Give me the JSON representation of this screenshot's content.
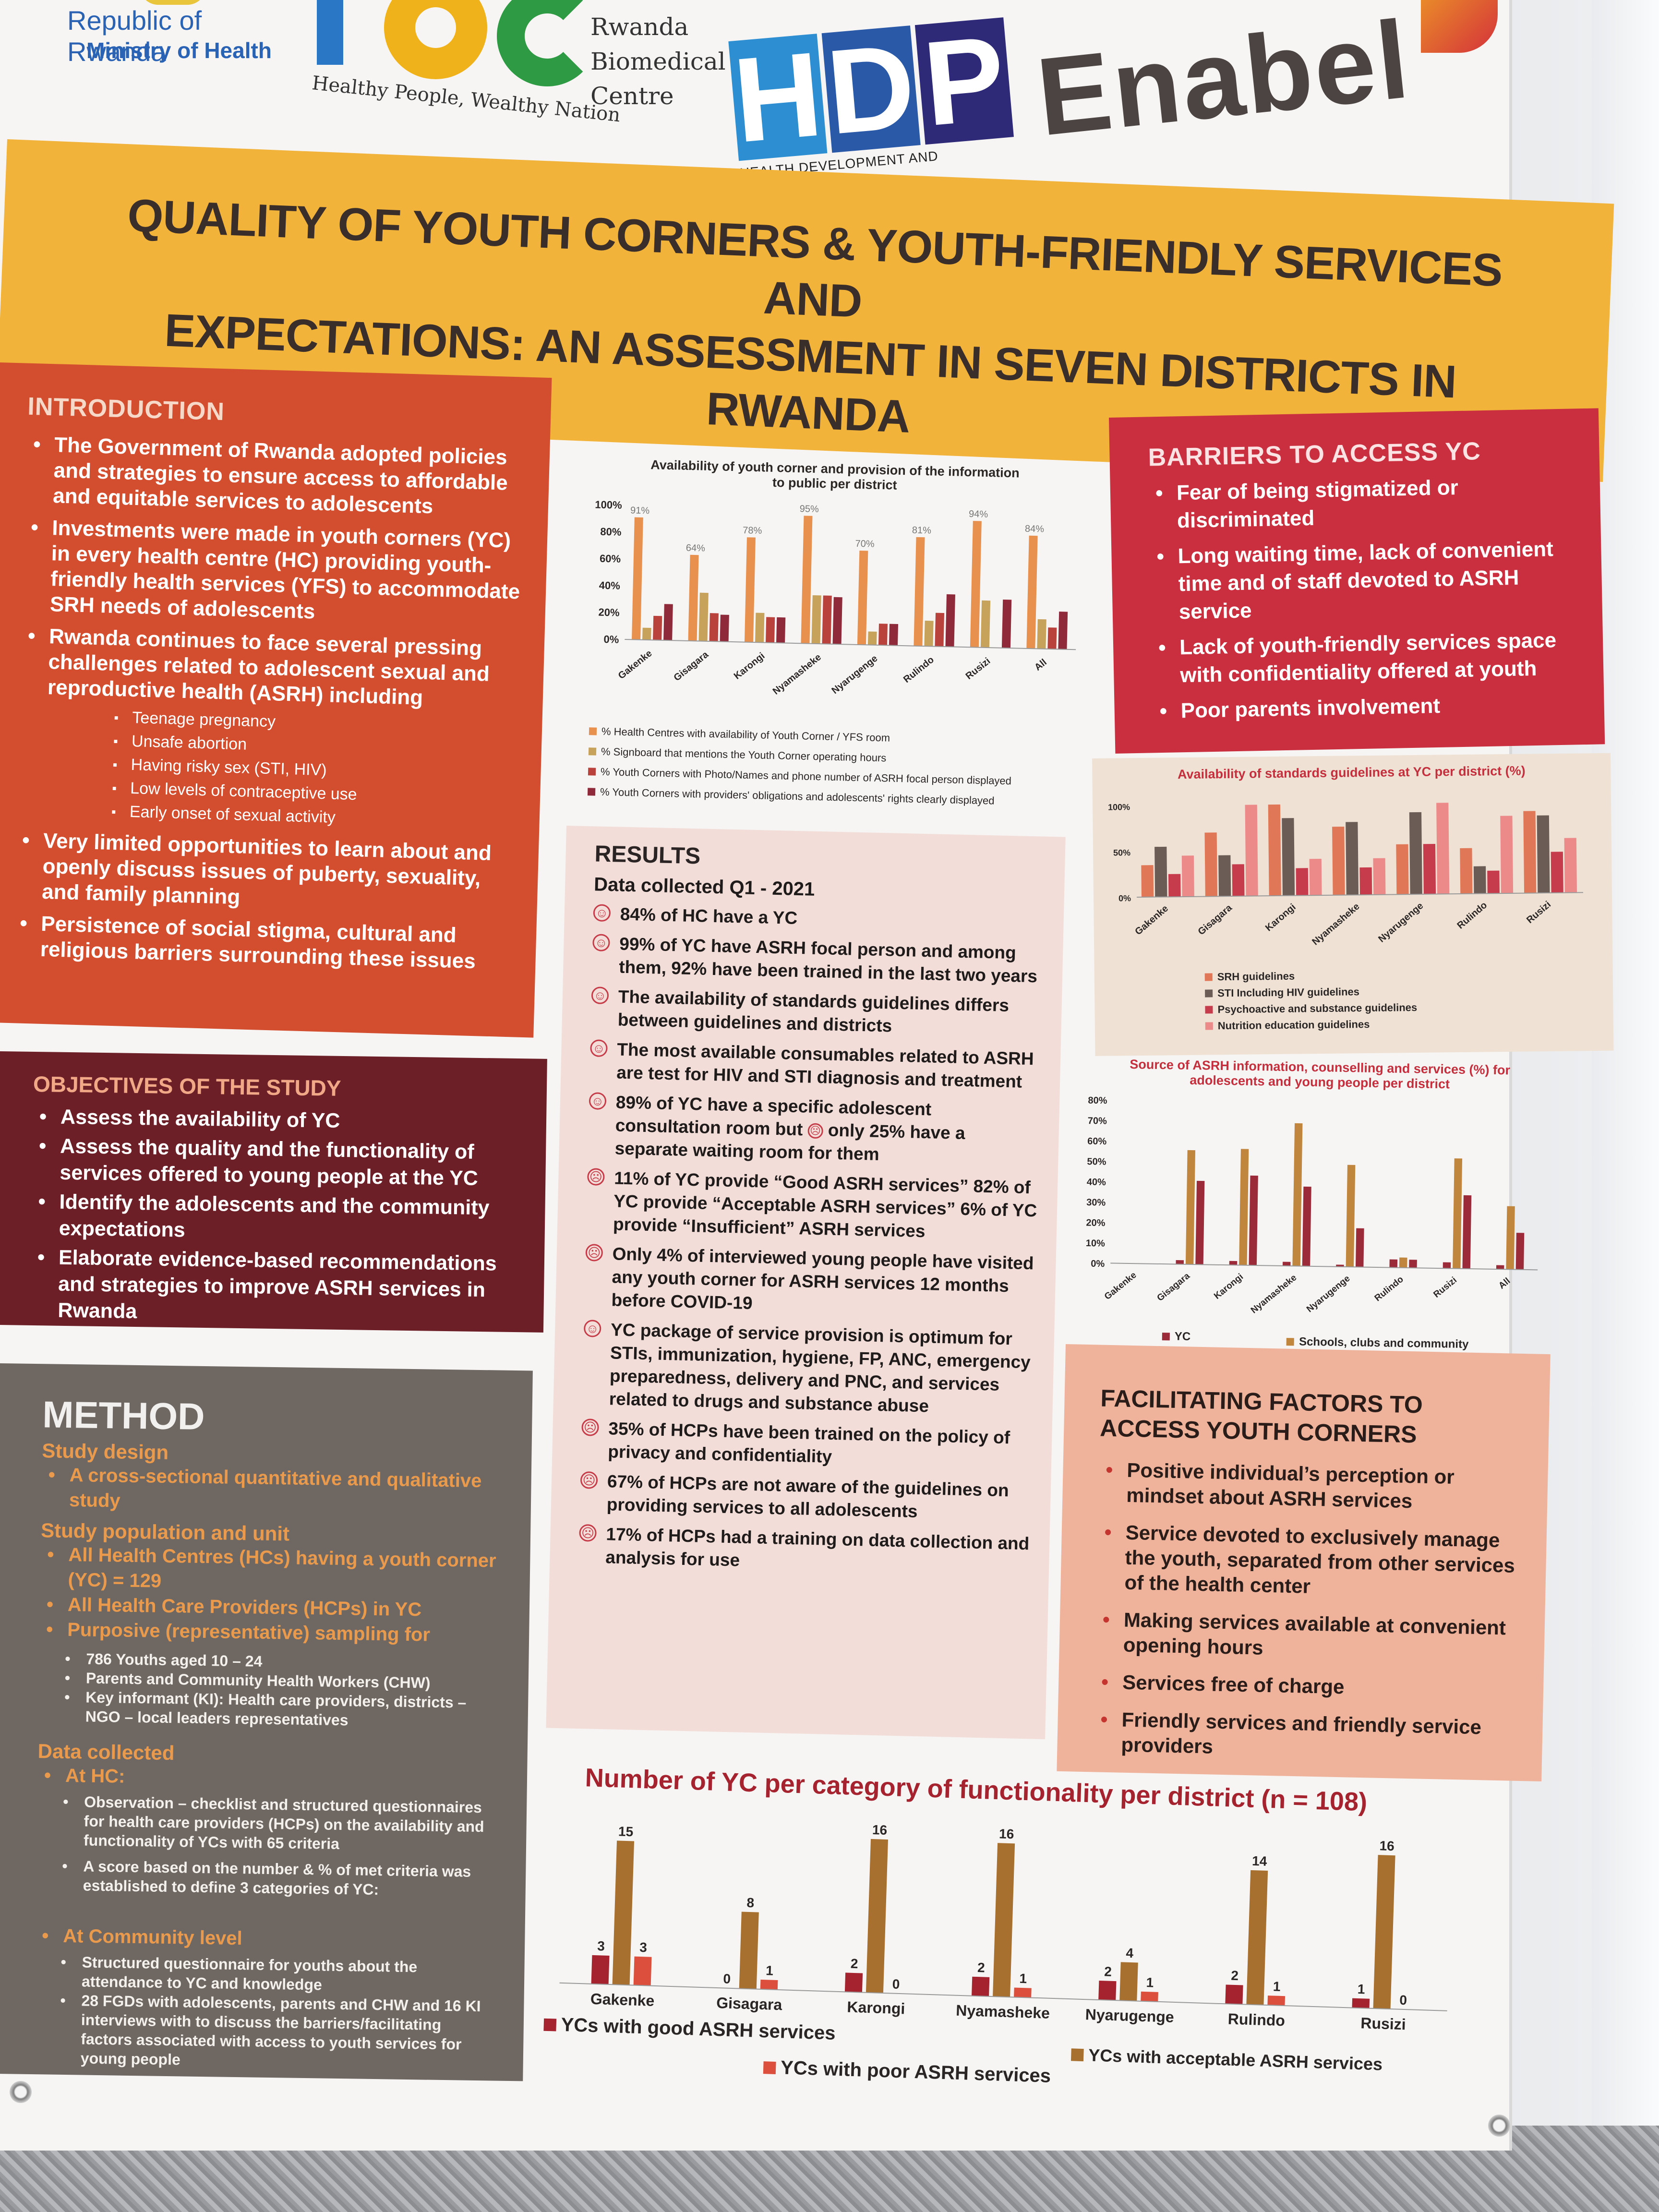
{
  "logos": {
    "rwanda_moh": {
      "line1": "Republic of Rwanda",
      "line2": "Ministry of Health"
    },
    "rbc": {
      "tagline": "Healthy People, Wealthy Nation",
      "name": [
        "Rwanda",
        "Biomedical",
        "Centre"
      ]
    },
    "hdp": {
      "letters": [
        "H",
        "D",
        "P"
      ],
      "subtitle": "HEALTH   DEVELOPMENT AND PERFORMANCE"
    },
    "enabel": "Enabel"
  },
  "title": {
    "line1": "QUALITY OF YOUTH CORNERS & YOUTH-FRIENDLY SERVICES AND",
    "line2": "EXPECTATIONS: AN ASSESSMENT IN SEVEN DISTRICTS IN RWANDA"
  },
  "introduction": {
    "heading": "INTRODUCTION",
    "bullets": [
      "The Government of Rwanda adopted policies and strategies to ensure access to affordable and equitable services to adolescents",
      "Investments were made in youth corners (YC) in every health centre (HC) providing youth-friendly health services (YFS) to accommodate SRH needs of adolescents",
      "Rwanda continues to face several pressing challenges related to adolescent sexual and reproductive health (ASRH) including"
    ],
    "sub_bullets": [
      "Teenage pregnancy",
      "Unsafe abortion",
      "Having risky sex (STI, HIV)",
      "Low levels of contraceptive use",
      "Early onset of sexual activity"
    ],
    "bullets_after": [
      "Very limited opportunities to learn about and openly discuss issues of puberty, sexuality, and family planning",
      "Persistence of social stigma, cultural and religious barriers surrounding these issues"
    ]
  },
  "objectives": {
    "heading": "OBJECTIVES OF THE STUDY",
    "bullets": [
      "Assess the availability of YC",
      "Assess the quality and the functionality of services offered to young people at the YC",
      "Identify the adolescents and the community expectations",
      "Elaborate evidence-based recommendations and strategies to improve ASRH services in Rwanda"
    ]
  },
  "method": {
    "heading": "METHOD",
    "study_design_label": "Study design",
    "study_design": "A cross-sectional quantitative and qualitative study",
    "population_label": "Study population and unit",
    "population": [
      "All Health Centres (HCs) having a youth corner (YC) = 129",
      "All Health Care Providers (HCPs) in YC",
      "Purposive (representative) sampling for"
    ],
    "sampling": [
      "786 Youths aged 10 – 24",
      "Parents and Community Health Workers (CHW)",
      "Key informant (KI): Health care providers, districts – NGO – local leaders  representatives"
    ],
    "data_collected_label": "Data collected",
    "at_hc_label": "At HC:",
    "at_hc": [
      "Observation – checklist and structured questionnaires for health care providers (HCPs) on the availability and functionality of YCs with 65 criteria",
      "A score based on the number & % of met criteria was established to define 3 categories of YC:"
    ],
    "community_label": "At Community level",
    "community": [
      "Structured questionnaire for youths about the attendance to YC and knowledge",
      "28 FGDs with adolescents, parents and CHW and 16 KI interviews with to discuss the barriers/facilitating factors associated with access to youth services for young people"
    ]
  },
  "barriers": {
    "heading": "BARRIERS TO ACCESS YC",
    "bullets": [
      "Fear of being stigmatized or discriminated",
      "Long waiting time, lack of convenient time and of staff devoted to ASRH service",
      "Lack of youth-friendly services space with confidentiality offered at youth",
      "Poor parents involvement"
    ]
  },
  "results": {
    "heading": "RESULTS",
    "data_collected": "Data collected Q1 - 2021",
    "items": [
      {
        "mood": "happy",
        "text": "84% of HC have a YC"
      },
      {
        "mood": "happy",
        "text": "99% of YC have ASRH focal person and among them, 92% have been trained in the last two years"
      },
      {
        "mood": "happy",
        "text": "The availability of standards guidelines differs between guidelines and districts"
      },
      {
        "mood": "happy",
        "text": "The most available consumables related to ASRH are test for HIV and STI diagnosis and treatment"
      },
      {
        "mood": "happy",
        "text": "89% of YC have a specific adolescent consultation room but",
        "text_after": "only 25% have a separate waiting room for them"
      },
      {
        "mood": "sad",
        "text": "11% of YC provide “Good ASRH services” 82% of YC provide “Acceptable ASRH services” 6% of YC provide “Insufficient” ASRH services"
      },
      {
        "mood": "sad",
        "text": "Only 4% of interviewed young people have visited any youth corner for ASRH services 12 months before COVID-19"
      },
      {
        "mood": "happy",
        "text": "YC package of service provision is optimum for STIs, immunization, hygiene, FP, ANC, emergency preparedness, delivery and PNC, and services related to drugs and substance abuse"
      },
      {
        "mood": "sad",
        "text": "35% of HCPs have been trained on the policy of privacy and confidentiality"
      },
      {
        "mood": "sad",
        "text": "67% of HCPs are not aware of the guidelines on providing services to all adolescents"
      },
      {
        "mood": "sad",
        "text": "17% of HCPs had a training on data collection and analysis for use"
      }
    ]
  },
  "facilitating": {
    "heading": "FACILITATING FACTORS TO ACCESS YOUTH CORNERS",
    "bullets": [
      "Positive individual’s perception or mindset about ASRH services",
      "Service devoted to exclusively manage the youth, separated from other services of the health center",
      "Making services available at convenient opening hours",
      "Services free of charge",
      "Friendly services and friendly service providers"
    ]
  },
  "chart_data": [
    {
      "id": "availability",
      "type": "bar",
      "title": "Availability of youth corner and provision of the information to public per district",
      "categories": [
        "Gakenke",
        "Gisagara",
        "Karongi",
        "Nyamasheke",
        "Nyarugenge",
        "Rulindo",
        "Rusizi",
        "All"
      ],
      "ylim": [
        0,
        100
      ],
      "yticks": [
        "100%",
        "80%",
        "60%",
        "40%",
        "20%",
        "0%"
      ],
      "data_labels": [
        "91%",
        "64%",
        "78%",
        "95%",
        "70%",
        "81%",
        "94%",
        "84%"
      ],
      "series": [
        {
          "name": "% Health Centres with availability of Youth Corner / YFS room",
          "color": "#e8914f",
          "values": [
            91,
            64,
            78,
            95,
            70,
            81,
            94,
            84
          ]
        },
        {
          "name": "% Signboard that mentions the Youth Corner operating hours",
          "color": "#c7a25b",
          "values": [
            9,
            36,
            22,
            36,
            10,
            19,
            35,
            22
          ]
        },
        {
          "name": "% Youth Corners with Photo/Names and phone number of ASRH focal person displayed",
          "color": "#b9423d",
          "values": [
            18,
            21,
            19,
            36,
            16,
            25,
            0,
            16
          ]
        },
        {
          "name": "% Youth Corners with providers' obligations and adolescents' rights  clearly displayed",
          "color": "#8e2a3a",
          "values": [
            27,
            20,
            19,
            35,
            16,
            39,
            36,
            28
          ]
        }
      ]
    },
    {
      "id": "guidelines",
      "type": "bar",
      "title": "Availability of standards guidelines at YC per district (%)",
      "categories": [
        "Gakenke",
        "Gisagara",
        "Karongi",
        "Nyamasheke",
        "Nyarugenge",
        "Rulindo",
        "Rusizi"
      ],
      "ylim": [
        0,
        100
      ],
      "yticks": [
        "100%",
        "50%",
        "0%"
      ],
      "series": [
        {
          "name": "SRH guidelines",
          "color": "#e07858",
          "values": [
            35,
            70,
            100,
            75,
            55,
            50,
            90
          ]
        },
        {
          "name": "STI Including HIV guidelines",
          "color": "#6b5c56",
          "values": [
            55,
            45,
            85,
            80,
            90,
            30,
            85
          ]
        },
        {
          "name": "Psychoactive and substance guidelines",
          "color": "#c73c4c",
          "values": [
            25,
            35,
            30,
            30,
            55,
            25,
            45
          ]
        },
        {
          "name": "Nutrition education guidelines",
          "color": "#ec8a8a",
          "values": [
            45,
            100,
            40,
            40,
            100,
            85,
            60
          ]
        }
      ]
    },
    {
      "id": "source",
      "type": "bar",
      "title": "Source of ASRH information, counselling and services (%) for adolescents and young people per district",
      "categories": [
        "Gakenke",
        "Gisagara",
        "Karongi",
        "Nyamasheke",
        "Nyarugenge",
        "Rulindo",
        "Rusizi",
        "All"
      ],
      "ylim": [
        0,
        80
      ],
      "yticks": [
        "80%",
        "70%",
        "60%",
        "50%",
        "40%",
        "30%",
        "20%",
        "10%",
        "0%"
      ],
      "series": [
        {
          "name": "YC",
          "color": "#9c2b3a",
          "values": [
            0,
            2,
            2,
            2,
            1,
            4,
            3,
            2
          ]
        },
        {
          "name": "Schools, clubs and community",
          "color": "#c1863e",
          "values": [
            0,
            56,
            57,
            70,
            50,
            5,
            54,
            31
          ]
        },
        {
          "name": "",
          "color": "#9c2b3a",
          "values": [
            0,
            41,
            44,
            39,
            19,
            4,
            36,
            18
          ]
        }
      ]
    },
    {
      "id": "functionality",
      "type": "bar",
      "title": "Number of YC per category of functionality per district (n = 108)",
      "categories": [
        "Gakenke",
        "Gisagara",
        "Karongi",
        "Nyamasheke",
        "Nyarugenge",
        "Rulindo",
        "Rusizi"
      ],
      "ylim": [
        0,
        16
      ],
      "series": [
        {
          "name": "YCs with good ASRH services",
          "color": "#a5232f",
          "values": [
            3,
            0,
            2,
            2,
            2,
            2,
            1
          ]
        },
        {
          "name": "YCs with acceptable ASRH services",
          "color": "#a7702f",
          "values": [
            15,
            8,
            16,
            16,
            4,
            14,
            16
          ]
        },
        {
          "name": "YCs with poor  ASRH services",
          "color": "#db4f3c",
          "values": [
            3,
            1,
            0,
            1,
            1,
            1,
            0
          ]
        }
      ]
    }
  ]
}
